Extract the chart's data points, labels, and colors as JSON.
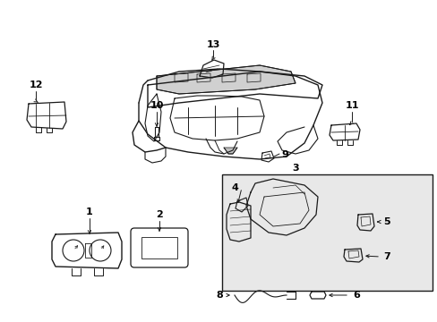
{
  "bg_color": "#ffffff",
  "line_color": "#1a1a1a",
  "label_color": "#000000",
  "box_bg": "#e8e8e8",
  "figsize": [
    4.89,
    3.6
  ],
  "dpi": 100
}
